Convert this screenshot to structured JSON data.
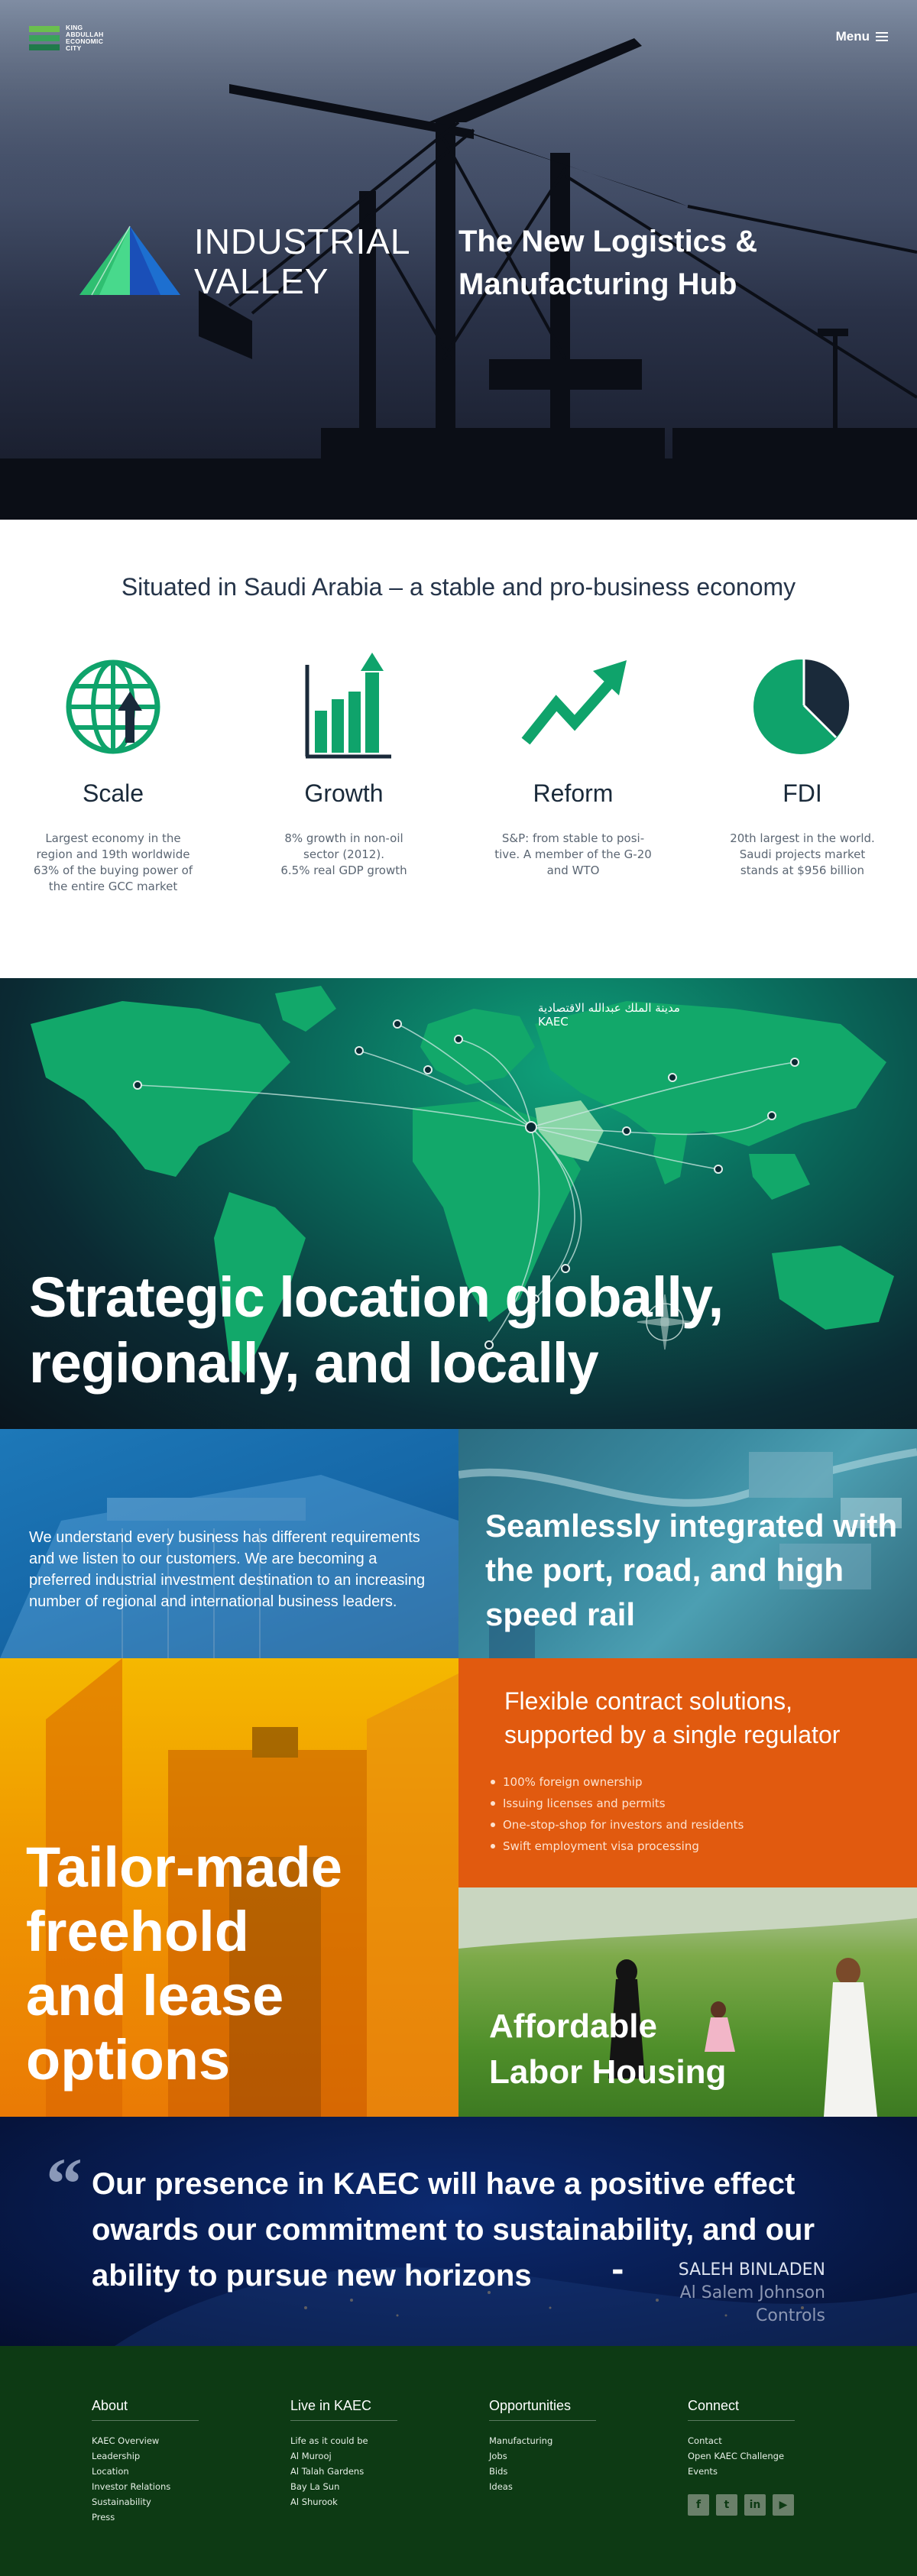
{
  "header": {
    "logo_text": [
      "KING",
      "ABDULLAH",
      "ECONOMIC",
      "CITY"
    ],
    "menu_label": "Menu"
  },
  "hero": {
    "logo_line1": "INDUSTRIAL",
    "logo_line2": "VALLEY",
    "tagline_line1": "The New Logistics &",
    "tagline_line2": "Manufacturing Hub"
  },
  "economy": {
    "title": "Situated in Saudi Arabia – a stable and pro-business economy",
    "stats": [
      {
        "icon": "globe-icon",
        "title": "Scale",
        "lines": [
          "Largest economy in the",
          "region and 19th worldwide",
          "63% of the buying power of",
          "the entire GCC market"
        ]
      },
      {
        "icon": "bar-chart-icon",
        "title": "Growth",
        "lines": [
          "8% growth in non-oil",
          "sector (2012).",
          "6.5% real GDP growth"
        ]
      },
      {
        "icon": "trend-arrow-icon",
        "title": "Reform",
        "lines": [
          "S&P: from stable to posi-",
          "tive. A member of the G-20",
          "and WTO"
        ]
      },
      {
        "icon": "pie-chart-icon",
        "title": "FDI",
        "lines": [
          "20th largest in the world.",
          "Saudi projects market",
          "stands at $956 billion"
        ]
      }
    ]
  },
  "map": {
    "kaec_arabic": "مدينة الملك عبدالله الاقتصادية",
    "kaec_label": "KAEC",
    "title_line1": "Strategic location globally,",
    "title_line2": "regionally, and locally"
  },
  "tiles": {
    "understand_text": "We understand every business has different requirements and we listen to our customers. We are becoming a preferred industrial investment destination to an increasing number of regional and international business leaders.",
    "port_title": "Seamlessly integrated with the port, road, and high speed rail",
    "freehold_lines": [
      "Tailor-made",
      "freehold",
      "and lease",
      "options"
    ],
    "flex_title": "Flexible contract solutions, supported by a single regulator",
    "flex_items": [
      "100% foreign ownership",
      "Issuing licenses and permits",
      "One-stop-shop for investors and residents",
      "Swift employment visa processing"
    ],
    "labor_lines": [
      "Affordable",
      "Labor Housing"
    ]
  },
  "quote": {
    "text": "Our presence in KAEC will have a positive effect owards our commitment to sustainability, and our ability to pursue new horizons",
    "dash": "-",
    "name": "SALEH BINLADEN",
    "company": "Al Salem Johnson Controls"
  },
  "footer": {
    "columns": [
      {
        "title": "About",
        "links": [
          "KAEC Overview",
          "Leadership",
          "Location",
          "Investor Relations",
          "Sustainability",
          "Press"
        ]
      },
      {
        "title": "Live in KAEC",
        "links": [
          "Life as it could be",
          "Al Murooj",
          "Al Talah Gardens",
          "Bay La Sun",
          "Al Shurook"
        ]
      },
      {
        "title": "Opportunities",
        "links": [
          "Manufacturing",
          "Jobs",
          "Bids",
          "Ideas"
        ]
      },
      {
        "title": "Connect",
        "links": [
          "Contact",
          "Open KAEC Challenge",
          "Events"
        ]
      }
    ],
    "social": [
      {
        "name": "facebook-icon",
        "glyph": "f"
      },
      {
        "name": "twitter-icon",
        "glyph": "t"
      },
      {
        "name": "linkedin-icon",
        "glyph": "in"
      },
      {
        "name": "youtube-icon",
        "glyph": "▶"
      }
    ]
  },
  "colors": {
    "brand_green": "#0fa36b",
    "navy": "#1a2a3a",
    "orange": "#e15a0f",
    "footer_green": "#0d3a14"
  }
}
